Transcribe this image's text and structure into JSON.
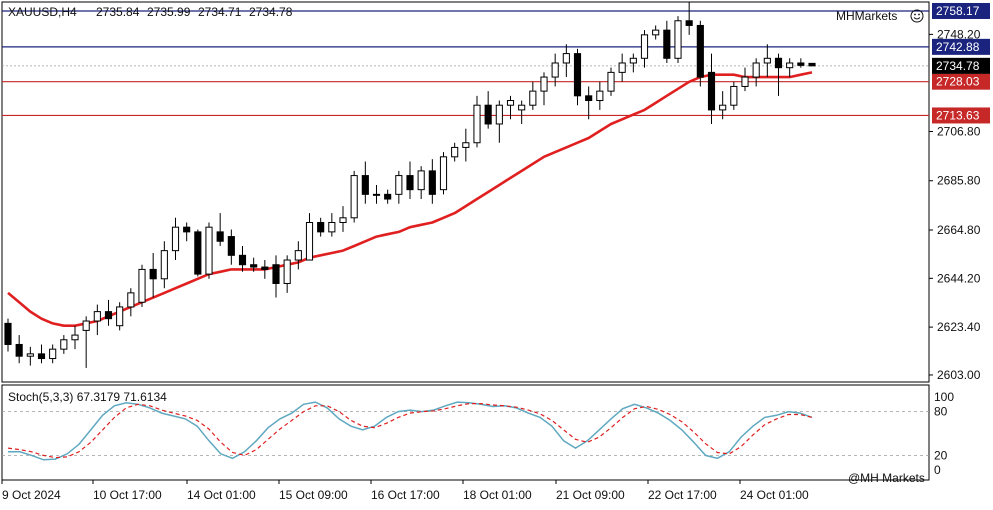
{
  "chart_data": {
    "type": "candlestick",
    "symbol_label": "XAUUSD,H4",
    "ohlc_readout": [
      "2735.84",
      "2735.99",
      "2734.71",
      "2734.78"
    ],
    "brand": "MHMarkets",
    "watermark": "@MH Markets",
    "ylim": [
      2600,
      2762
    ],
    "yticks": [
      "2603.00",
      "2623.40",
      "2644.20",
      "2664.80",
      "2685.80",
      "2706.80",
      "2748.20"
    ],
    "time_labels": [
      "9 Oct 2024",
      "10 Oct 17:00",
      "14 Oct 01:00",
      "15 Oct 09:00",
      "16 Oct 17:00",
      "18 Oct 01:00",
      "21 Oct 09:00",
      "22 Oct 17:00",
      "24 Oct 01:00"
    ],
    "levels": [
      {
        "value": 2758.17,
        "label": "2758.17",
        "color": "#1a237e"
      },
      {
        "value": 2742.88,
        "label": "2742.88",
        "color": "#1a237e"
      },
      {
        "value": 2728.03,
        "label": "2728.03",
        "color": "#c62828"
      },
      {
        "value": 2713.63,
        "label": "2713.63",
        "color": "#c62828"
      }
    ],
    "current_price": {
      "value": 2734.78,
      "label": "2734.78",
      "color": "#000000"
    },
    "candles": [
      [
        2625,
        2627,
        2613,
        2616
      ],
      [
        2616,
        2620,
        2608,
        2611
      ],
      [
        2611,
        2615,
        2607,
        2612
      ],
      [
        2612,
        2616,
        2608,
        2610
      ],
      [
        2610,
        2616,
        2608,
        2614
      ],
      [
        2614,
        2620,
        2612,
        2618
      ],
      [
        2618,
        2624,
        2614,
        2620
      ],
      [
        2622,
        2628,
        2606,
        2626
      ],
      [
        2626,
        2633,
        2620,
        2630
      ],
      [
        2630,
        2635,
        2624,
        2627
      ],
      [
        2624,
        2634,
        2622,
        2632
      ],
      [
        2632,
        2640,
        2628,
        2638
      ],
      [
        2634,
        2650,
        2632,
        2648
      ],
      [
        2648,
        2655,
        2636,
        2644
      ],
      [
        2644,
        2660,
        2640,
        2656
      ],
      [
        2656,
        2670,
        2652,
        2666
      ],
      [
        2666,
        2668,
        2660,
        2664
      ],
      [
        2664,
        2665,
        2645,
        2646
      ],
      [
        2646,
        2668,
        2644,
        2666
      ],
      [
        2664,
        2672,
        2658,
        2660
      ],
      [
        2662,
        2665,
        2650,
        2654
      ],
      [
        2654,
        2658,
        2647,
        2650
      ],
      [
        2650,
        2653,
        2647,
        2649
      ],
      [
        2649,
        2652,
        2644,
        2648
      ],
      [
        2650,
        2654,
        2636,
        2642
      ],
      [
        2642,
        2654,
        2638,
        2652
      ],
      [
        2652,
        2660,
        2648,
        2656
      ],
      [
        2652,
        2672,
        2652,
        2668
      ],
      [
        2668,
        2670,
        2662,
        2664
      ],
      [
        2664,
        2672,
        2662,
        2668
      ],
      [
        2668,
        2675,
        2664,
        2670
      ],
      [
        2670,
        2690,
        2668,
        2688
      ],
      [
        2688,
        2694,
        2676,
        2680
      ],
      [
        2680,
        2684,
        2676,
        2680
      ],
      [
        2680,
        2682,
        2676,
        2678
      ],
      [
        2680,
        2690,
        2676,
        2688
      ],
      [
        2688,
        2694,
        2678,
        2682
      ],
      [
        2682,
        2692,
        2678,
        2690
      ],
      [
        2690,
        2695,
        2676,
        2680
      ],
      [
        2682,
        2698,
        2680,
        2696
      ],
      [
        2696,
        2702,
        2694,
        2700
      ],
      [
        2700,
        2708,
        2694,
        2702
      ],
      [
        2702,
        2722,
        2700,
        2718
      ],
      [
        2718,
        2724,
        2708,
        2710
      ],
      [
        2710,
        2720,
        2702,
        2718
      ],
      [
        2718,
        2722,
        2712,
        2720
      ],
      [
        2716,
        2720,
        2710,
        2718
      ],
      [
        2718,
        2728,
        2716,
        2724
      ],
      [
        2724,
        2732,
        2718,
        2730
      ],
      [
        2730,
        2740,
        2726,
        2736
      ],
      [
        2736,
        2744,
        2730,
        2740
      ],
      [
        2740,
        2742,
        2718,
        2722
      ],
      [
        2722,
        2726,
        2712,
        2720
      ],
      [
        2720,
        2728,
        2716,
        2724
      ],
      [
        2724,
        2734,
        2722,
        2732
      ],
      [
        2732,
        2740,
        2728,
        2736
      ],
      [
        2736,
        2740,
        2732,
        2738
      ],
      [
        2738,
        2750,
        2734,
        2748
      ],
      [
        2748,
        2752,
        2746,
        2750
      ],
      [
        2750,
        2754,
        2736,
        2738
      ],
      [
        2738,
        2756,
        2736,
        2754
      ],
      [
        2754,
        2762,
        2748,
        2752
      ],
      [
        2752,
        2754,
        2726,
        2730
      ],
      [
        2732,
        2740,
        2710,
        2716
      ],
      [
        2716,
        2724,
        2712,
        2718
      ],
      [
        2718,
        2728,
        2716,
        2726
      ],
      [
        2726,
        2734,
        2724,
        2730
      ],
      [
        2730,
        2738,
        2726,
        2736
      ],
      [
        2736,
        2744,
        2730,
        2738
      ],
      [
        2738,
        2740,
        2722,
        2734
      ],
      [
        2734,
        2738,
        2730,
        2736
      ],
      [
        2736,
        2738,
        2734,
        2735
      ],
      [
        2735.84,
        2735.99,
        2734.71,
        2734.78
      ]
    ],
    "ma_line": {
      "color": "#e02020",
      "values": [
        2638,
        2634,
        2630,
        2627,
        2625,
        2624,
        2624,
        2625,
        2626,
        2628,
        2630,
        2632,
        2634,
        2636,
        2638,
        2640,
        2642,
        2644,
        2646,
        2647,
        2648,
        2648,
        2648,
        2648,
        2649,
        2650,
        2651,
        2653,
        2654,
        2655,
        2656,
        2658,
        2660,
        2662,
        2663,
        2664,
        2666,
        2667,
        2668,
        2670,
        2672,
        2675,
        2678,
        2681,
        2684,
        2687,
        2690,
        2693,
        2696,
        2698,
        2700,
        2702,
        2704,
        2707,
        2710,
        2712,
        2714,
        2716,
        2719,
        2722,
        2725,
        2728,
        2730,
        2731,
        2731,
        2731,
        2730,
        2730,
        2730,
        2730,
        2730,
        2731,
        2732
      ]
    },
    "stochastic": {
      "label": "Stoch(5,3,3) 67.3179 71.6134",
      "ylim": [
        0,
        100
      ],
      "levels": [
        {
          "value": 100,
          "label": "100"
        },
        {
          "value": 80,
          "label": "80"
        },
        {
          "value": 20,
          "label": "20"
        },
        {
          "value": 0,
          "label": "0"
        }
      ],
      "main_color": "#5fa8c0",
      "signal_color": "#e02020",
      "main": [
        25,
        25,
        20,
        14,
        15,
        22,
        35,
        55,
        75,
        88,
        92,
        90,
        85,
        78,
        74,
        70,
        60,
        40,
        22,
        16,
        25,
        40,
        58,
        70,
        78,
        90,
        93,
        85,
        70,
        60,
        55,
        60,
        72,
        80,
        82,
        80,
        82,
        88,
        93,
        92,
        90,
        87,
        88,
        85,
        78,
        72,
        60,
        40,
        30,
        40,
        55,
        70,
        84,
        90,
        85,
        78,
        68,
        55,
        38,
        20,
        16,
        25,
        45,
        60,
        72,
        75,
        80,
        78,
        72
      ],
      "signal": [
        30,
        28,
        25,
        20,
        17,
        18,
        25,
        38,
        55,
        72,
        85,
        90,
        88,
        82,
        78,
        74,
        68,
        56,
        38,
        24,
        20,
        28,
        42,
        56,
        68,
        80,
        88,
        88,
        80,
        68,
        60,
        58,
        64,
        72,
        78,
        80,
        81,
        84,
        88,
        91,
        91,
        89,
        88,
        86,
        82,
        77,
        68,
        55,
        42,
        38,
        45,
        58,
        72,
        84,
        87,
        83,
        76,
        66,
        52,
        36,
        24,
        22,
        32,
        48,
        62,
        70,
        76,
        76,
        72
      ]
    }
  }
}
